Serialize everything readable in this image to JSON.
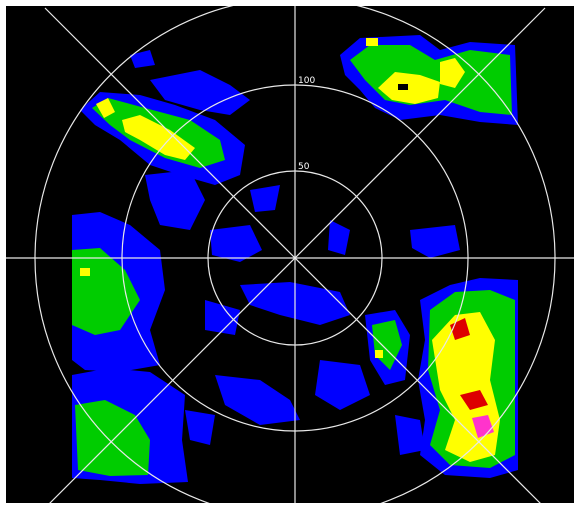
{
  "range_rings": [
    {
      "label": "50"
    },
    {
      "label": "100"
    }
  ]
}
